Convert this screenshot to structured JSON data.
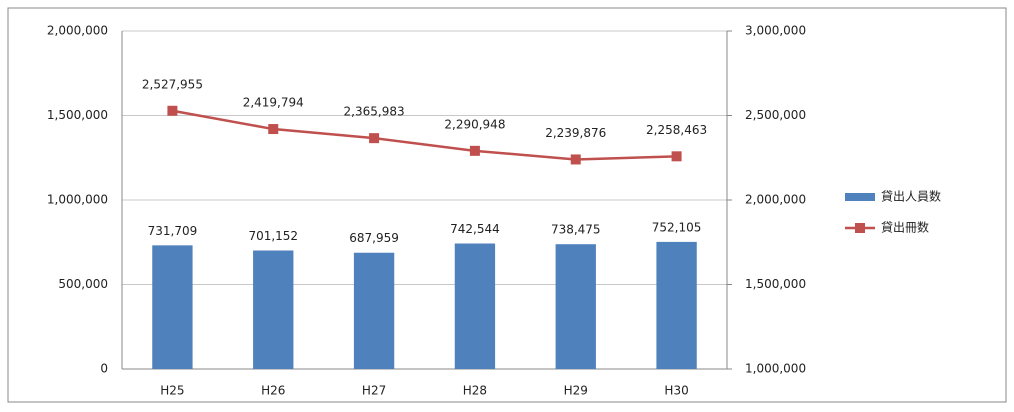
{
  "chart_data": {
    "type": "bar",
    "categories": [
      "H25",
      "H26",
      "H27",
      "H28",
      "H29",
      "H30"
    ],
    "series": [
      {
        "name": "貸出人員数",
        "type": "bar",
        "color": "#4f81bd",
        "axis": "y",
        "values": [
          731709,
          701152,
          687959,
          742544,
          738475,
          752105
        ],
        "value_labels": [
          "731,709",
          "701,152",
          "687,959",
          "742,544",
          "738,475",
          "752,105"
        ]
      },
      {
        "name": "貸出冊数",
        "type": "line",
        "color": "#c0504d",
        "axis": "y2",
        "values": [
          2527955,
          2419794,
          2365983,
          2290948,
          2239876,
          2258463
        ],
        "value_labels": [
          "2,527,955",
          "2,419,794",
          "2,365,983",
          "2,290,948",
          "2,239,876",
          "2,258,463"
        ]
      }
    ],
    "ylim": [
      0,
      2000000
    ],
    "yticks": [
      0,
      {
        "value": 500000,
        "label": "500,000"
      },
      {
        "value": 1000000,
        "label": "1,000,000"
      },
      {
        "value": 1500000,
        "label": "1,500,000"
      },
      {
        "value": 2000000,
        "label": "2,000,000"
      }
    ],
    "y2lim": [
      1000000,
      3000000
    ],
    "y2ticks": [
      {
        "value": 1000000,
        "label": "1,000,000"
      },
      {
        "value": 1500000,
        "label": "1,500,000"
      },
      {
        "value": 2000000,
        "label": "2,000,000"
      },
      {
        "value": 2500000,
        "label": "2,500,000"
      },
      {
        "value": 3000000,
        "label": "3,000,000"
      }
    ],
    "grid": true,
    "legend": "right"
  }
}
